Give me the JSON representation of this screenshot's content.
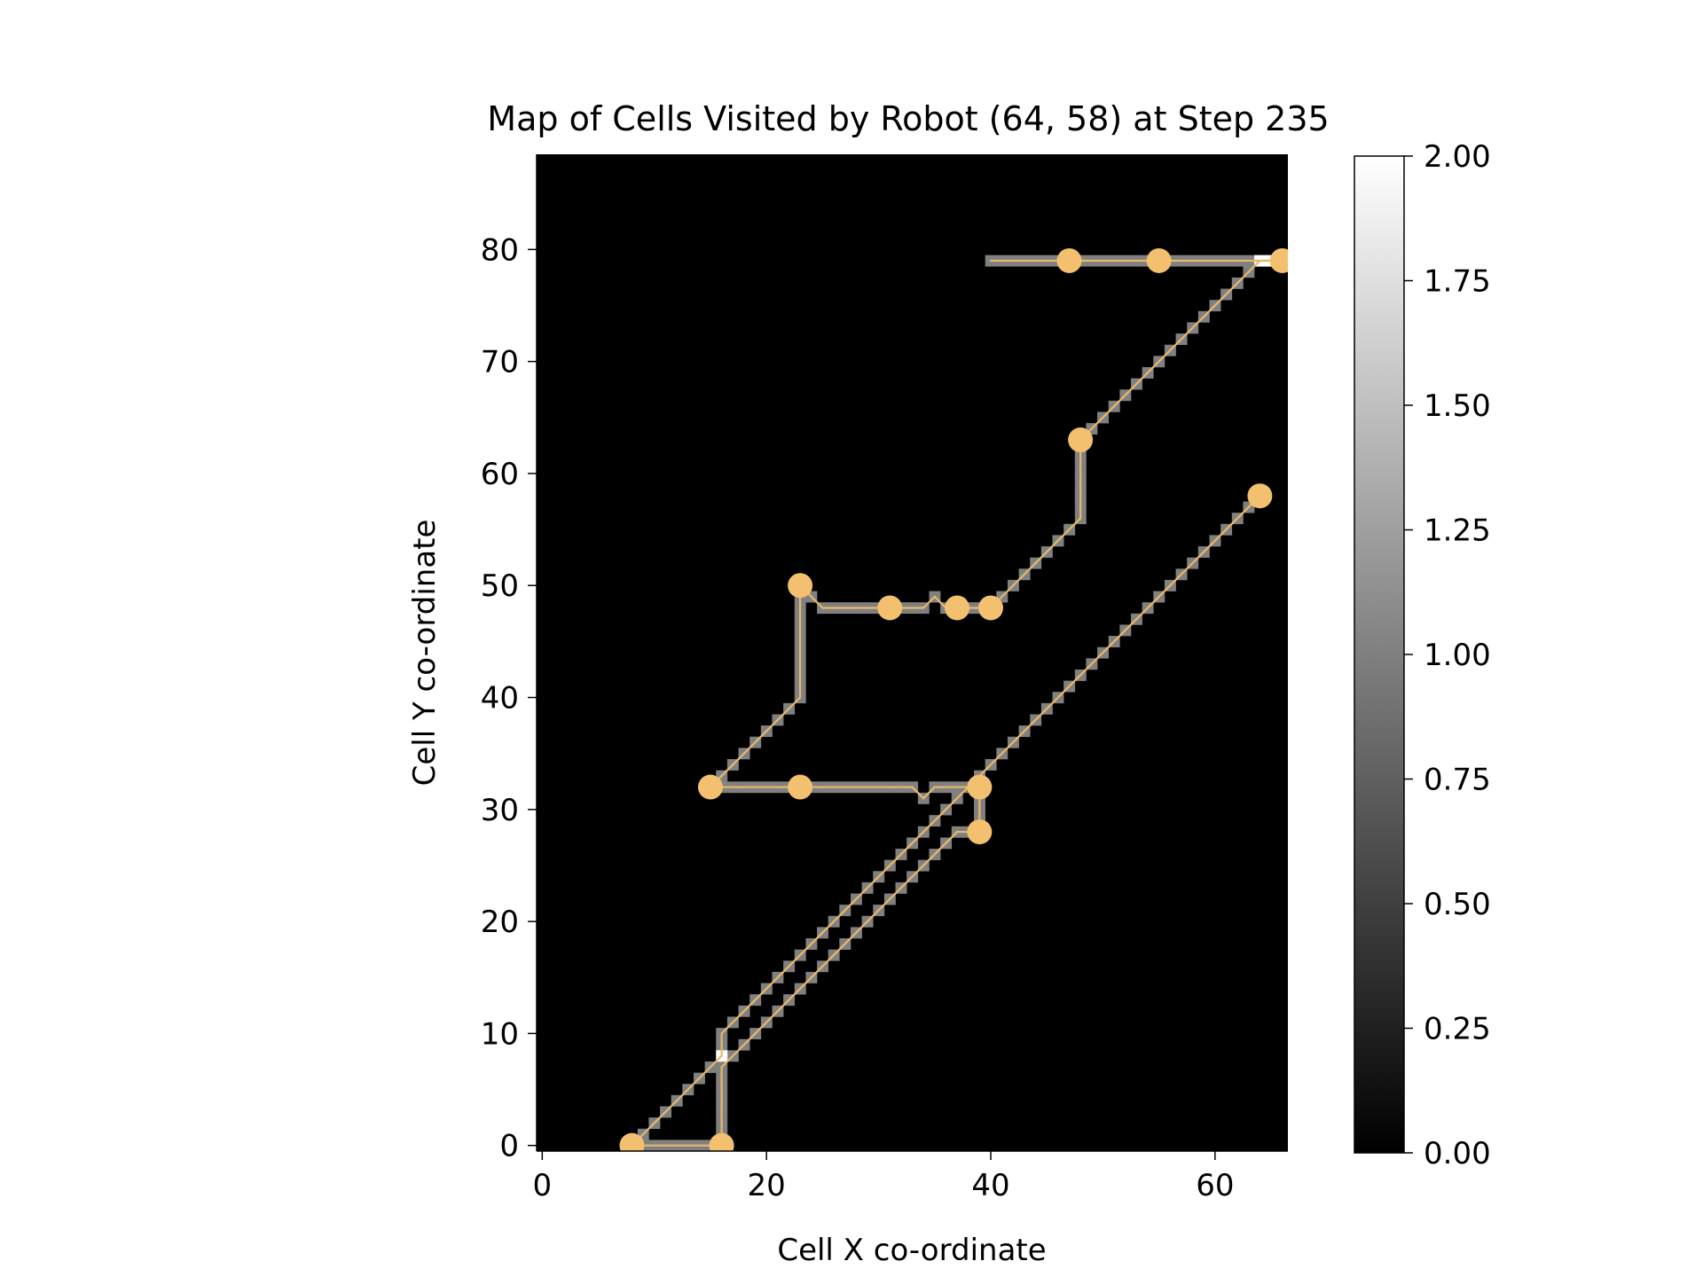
{
  "chart_data": {
    "type": "heatmap",
    "title": "Map of Cells Visited by Robot (64, 58) at Step 235",
    "xlabel": "Cell X co-ordinate",
    "ylabel": "Cell Y co-ordinate",
    "xlim": [
      -0.5,
      66.5
    ],
    "ylim": [
      -0.5,
      88.5
    ],
    "xticks": [
      0,
      20,
      40,
      60
    ],
    "yticks": [
      0,
      10,
      20,
      30,
      40,
      50,
      60,
      70,
      80
    ],
    "colormap": "gray",
    "colorbar": {
      "range": [
        0.0,
        2.0
      ],
      "ticks": [
        "0.00",
        "0.25",
        "0.50",
        "0.75",
        "1.00",
        "1.25",
        "1.50",
        "1.75",
        "2.00"
      ]
    },
    "background_value": 0,
    "path_cell_value": 1,
    "overlap_cells": [
      [
        16,
        8
      ],
      [
        64,
        79
      ],
      [
        65,
        79
      ]
    ],
    "path_color": "#e8b86d",
    "marker_color": "#f2c06f",
    "background_color": "#000000",
    "path_segments": [
      [
        [
          15,
          32
        ],
        [
          23,
          40
        ]
      ],
      [
        [
          23,
          40
        ],
        [
          23,
          50
        ]
      ],
      [
        [
          23,
          50
        ],
        [
          25,
          48
        ]
      ],
      [
        [
          25,
          48
        ],
        [
          34,
          48
        ]
      ],
      [
        [
          34,
          48
        ],
        [
          35,
          49
        ]
      ],
      [
        [
          35,
          49
        ],
        [
          36,
          48
        ]
      ],
      [
        [
          36,
          48
        ],
        [
          40,
          48
        ]
      ],
      [
        [
          40,
          48
        ],
        [
          48,
          56
        ]
      ],
      [
        [
          48,
          56
        ],
        [
          48,
          63
        ]
      ],
      [
        [
          48,
          63
        ],
        [
          64,
          79
        ]
      ],
      [
        [
          64,
          79
        ],
        [
          66,
          79
        ]
      ],
      [
        [
          66,
          79
        ],
        [
          40,
          79
        ]
      ],
      [
        [
          15,
          32
        ],
        [
          33,
          32
        ]
      ],
      [
        [
          33,
          32
        ],
        [
          34,
          31
        ]
      ],
      [
        [
          34,
          31
        ],
        [
          35,
          32
        ]
      ],
      [
        [
          35,
          32
        ],
        [
          38,
          32
        ]
      ],
      [
        [
          38,
          32
        ],
        [
          39,
          32
        ]
      ],
      [
        [
          39,
          32
        ],
        [
          39,
          28
        ]
      ],
      [
        [
          39,
          28
        ],
        [
          37,
          28
        ]
      ],
      [
        [
          37,
          28
        ],
        [
          16,
          7
        ]
      ],
      [
        [
          16,
          7
        ],
        [
          16,
          0
        ]
      ],
      [
        [
          16,
          0
        ],
        [
          8,
          0
        ]
      ],
      [
        [
          8,
          0
        ],
        [
          16,
          8
        ]
      ],
      [
        [
          16,
          8
        ],
        [
          16,
          10
        ]
      ],
      [
        [
          16,
          10
        ],
        [
          64,
          58
        ]
      ]
    ],
    "markers": [
      [
        8,
        0
      ],
      [
        16,
        0
      ],
      [
        15,
        32
      ],
      [
        23,
        32
      ],
      [
        39,
        32
      ],
      [
        39,
        28
      ],
      [
        23,
        50
      ],
      [
        31,
        48
      ],
      [
        37,
        48
      ],
      [
        40,
        48
      ],
      [
        48,
        63
      ],
      [
        47,
        79
      ],
      [
        55,
        79
      ],
      [
        66,
        79
      ],
      [
        64,
        58
      ]
    ]
  }
}
